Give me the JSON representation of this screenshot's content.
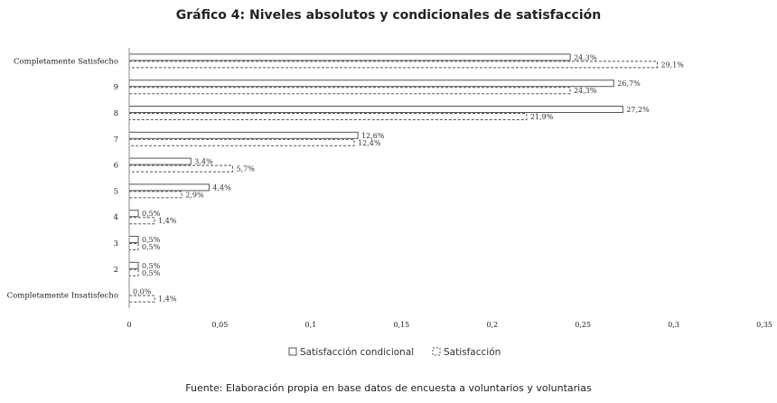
{
  "chart_data": {
    "type": "bar",
    "orientation": "horizontal",
    "title": "Gráfico 4: Niveles absolutos y condicionales de satisfacción",
    "categories": [
      "Completamente Satisfecho",
      "9",
      "8",
      "7",
      "6",
      "5",
      "4",
      "3",
      "2",
      "Completamente Insatisfecho"
    ],
    "series": [
      {
        "name": "Satisfacción condicional",
        "style": "solid",
        "values": [
          0.243,
          0.267,
          0.272,
          0.126,
          0.034,
          0.044,
          0.005,
          0.005,
          0.005,
          0.0
        ],
        "labels": [
          "24,3%",
          "26,7%",
          "27,2%",
          "12,6%",
          "3,4%",
          "4,4%",
          "0,5%",
          "0,5%",
          "0,5%",
          "0,0%"
        ]
      },
      {
        "name": "Satisfacción",
        "style": "dashed",
        "values": [
          0.291,
          0.243,
          0.219,
          0.124,
          0.057,
          0.029,
          0.014,
          0.005,
          0.005,
          0.014
        ],
        "labels": [
          "29,1%",
          "24,3%",
          "21,9%",
          "12,4%",
          "5,7%",
          "2,9%",
          "1,4%",
          "0,5%",
          "0,5%",
          "1,4%"
        ]
      }
    ],
    "xlim": [
      0,
      0.35
    ],
    "xticks": [
      "0",
      "0,05",
      "0,1",
      "0,15",
      "0,2",
      "0,25",
      "0,3",
      "0,35"
    ],
    "xtick_values": [
      0,
      0.05,
      0.1,
      0.15,
      0.2,
      0.25,
      0.3,
      0.35
    ],
    "legend_position": "bottom",
    "grid": false,
    "colors": {
      "bar_stroke": "#555555",
      "bar_fill": "#ffffff",
      "axis": "#888888"
    }
  },
  "source": "Fuente: Elaboración propia en base datos de encuesta a voluntarios y voluntarias"
}
